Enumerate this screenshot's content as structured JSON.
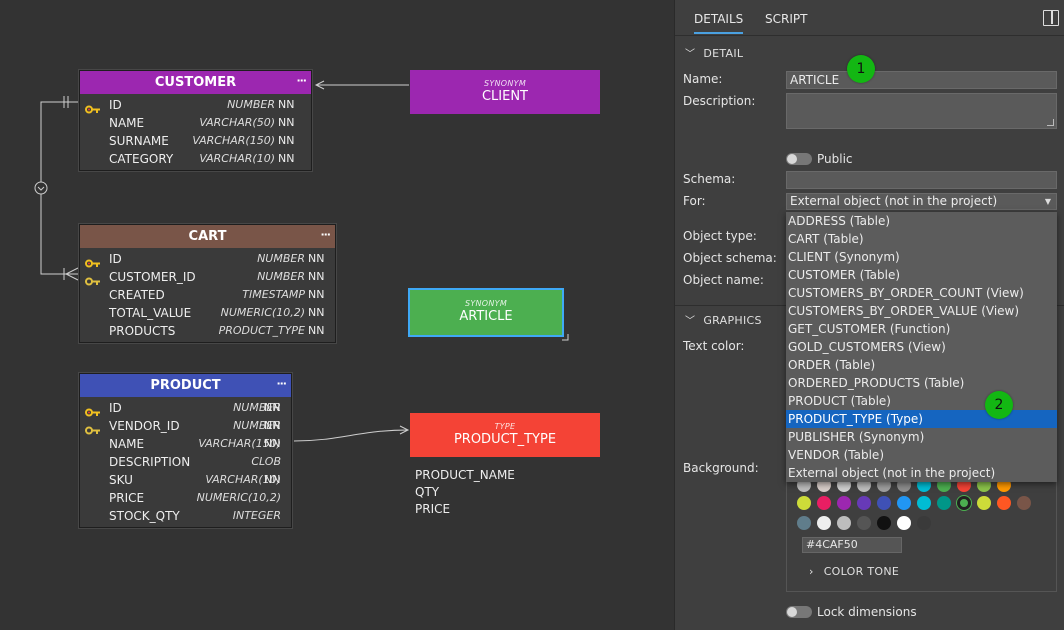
{
  "diagram": {
    "entities": [
      {
        "name": "CUSTOMER",
        "color": "#9c27b0",
        "dots": "···",
        "columns": [
          {
            "name": "ID",
            "type": "NUMBER",
            "nn": "NN",
            "key": "pk"
          },
          {
            "name": "NAME",
            "type": "VARCHAR(50)",
            "nn": "NN",
            "key": ""
          },
          {
            "name": "SURNAME",
            "type": "VARCHAR(150)",
            "nn": "NN",
            "key": ""
          },
          {
            "name": "CATEGORY",
            "type": "VARCHAR(10)",
            "nn": "NN",
            "key": ""
          }
        ]
      },
      {
        "name": "CART",
        "color": "#795548",
        "dots": "···",
        "columns": [
          {
            "name": "ID",
            "type": "NUMBER",
            "nn": "NN",
            "key": "pk"
          },
          {
            "name": "CUSTOMER_ID",
            "type": "NUMBER",
            "nn": "NN",
            "key": "fk"
          },
          {
            "name": "CREATED",
            "type": "TIMESTAMP",
            "nn": "NN",
            "key": ""
          },
          {
            "name": "TOTAL_VALUE",
            "type": "NUMERIC(10,2)",
            "nn": "NN",
            "key": ""
          },
          {
            "name": "PRODUCTS",
            "type": "PRODUCT_TYPE",
            "nn": "NN",
            "key": ""
          }
        ]
      },
      {
        "name": "PRODUCT",
        "color": "#3f51b5",
        "dots": "···",
        "columns": [
          {
            "name": "ID",
            "type": "NUMBER",
            "nn": "NN",
            "key": "pk"
          },
          {
            "name": "VENDOR_ID",
            "type": "NUMBER",
            "nn": "NN",
            "key": "fk"
          },
          {
            "name": "NAME",
            "type": "VARCHAR(150)",
            "nn": "NN",
            "key": ""
          },
          {
            "name": "DESCRIPTION",
            "type": "CLOB",
            "nn": "",
            "key": ""
          },
          {
            "name": "SKU",
            "type": "VARCHAR(10)",
            "nn": "NN",
            "key": ""
          },
          {
            "name": "PRICE",
            "type": "NUMERIC(10,2)",
            "nn": "",
            "key": ""
          },
          {
            "name": "STOCK_QTY",
            "type": "INTEGER",
            "nn": "",
            "key": ""
          }
        ]
      }
    ],
    "client": {
      "label": "SYNONYM",
      "name": "CLIENT",
      "color": "#9c27b0"
    },
    "article": {
      "label": "SYNONYM",
      "name": "ARTICLE",
      "color": "#4caf50"
    },
    "product_type": {
      "label": "TYPE",
      "name": "PRODUCT_TYPE",
      "color": "#f44336",
      "fields": [
        "PRODUCT_NAME",
        "QTY",
        "PRICE"
      ]
    }
  },
  "panel": {
    "tabs": [
      "DETAILS",
      "SCRIPT"
    ],
    "detail_section": "DETAIL",
    "graphics_section": "GRAPHICS",
    "color_tone": "COLOR TONE",
    "labels": {
      "name": "Name:",
      "description": "Description:",
      "public": "Public",
      "schema": "Schema:",
      "for": "For:",
      "object_type": "Object type:",
      "object_schema": "Object schema:",
      "object_name": "Object name:",
      "text_color": "Text color:",
      "background": "Background:",
      "lock_dimensions": "Lock dimensions"
    },
    "name_value": "ARTICLE",
    "for_value": "External object (not in the project)",
    "dropdown_options": [
      "ADDRESS (Table)",
      "CART (Table)",
      "CLIENT (Synonym)",
      "CUSTOMER (Table)",
      "CUSTOMERS_BY_ORDER_COUNT (View)",
      "CUSTOMERS_BY_ORDER_VALUE (View)",
      "GET_CUSTOMER (Function)",
      "GOLD_CUSTOMERS (View)",
      "ORDER (Table)",
      "ORDERED_PRODUCTS (Table)",
      "PRODUCT (Table)",
      "PRODUCT_TYPE (Type)",
      "PUBLISHER (Synonym)",
      "VENDOR (Table)",
      "External object (not in the project)"
    ],
    "dropdown_selected": "PRODUCT_TYPE (Type)",
    "hex_value": "#4CAF50",
    "badges": [
      "1",
      "2"
    ],
    "swatch_rows": [
      [
        "#bbbbbb",
        "#d7ccc8",
        "#cfcfcf",
        "#bdbdbd",
        "#9e9e9e",
        "#8d8d8d",
        "#00bcd4",
        "#4caf50",
        "#f44336",
        "#8bc34a",
        "#ff9800"
      ],
      [
        "#cddc39",
        "#e91e63",
        "#9c27b0",
        "#673ab7",
        "#3f51b5",
        "#2196f3",
        "#00bcd4",
        "#009688",
        "#4caf50",
        "#cddc39",
        "#ff5722",
        "#795548"
      ],
      [
        "#607d8b",
        "#eeeeee",
        "#bdbdbd",
        "#555555",
        "#111111",
        "#ffffff",
        "#3a3a3a"
      ]
    ]
  }
}
